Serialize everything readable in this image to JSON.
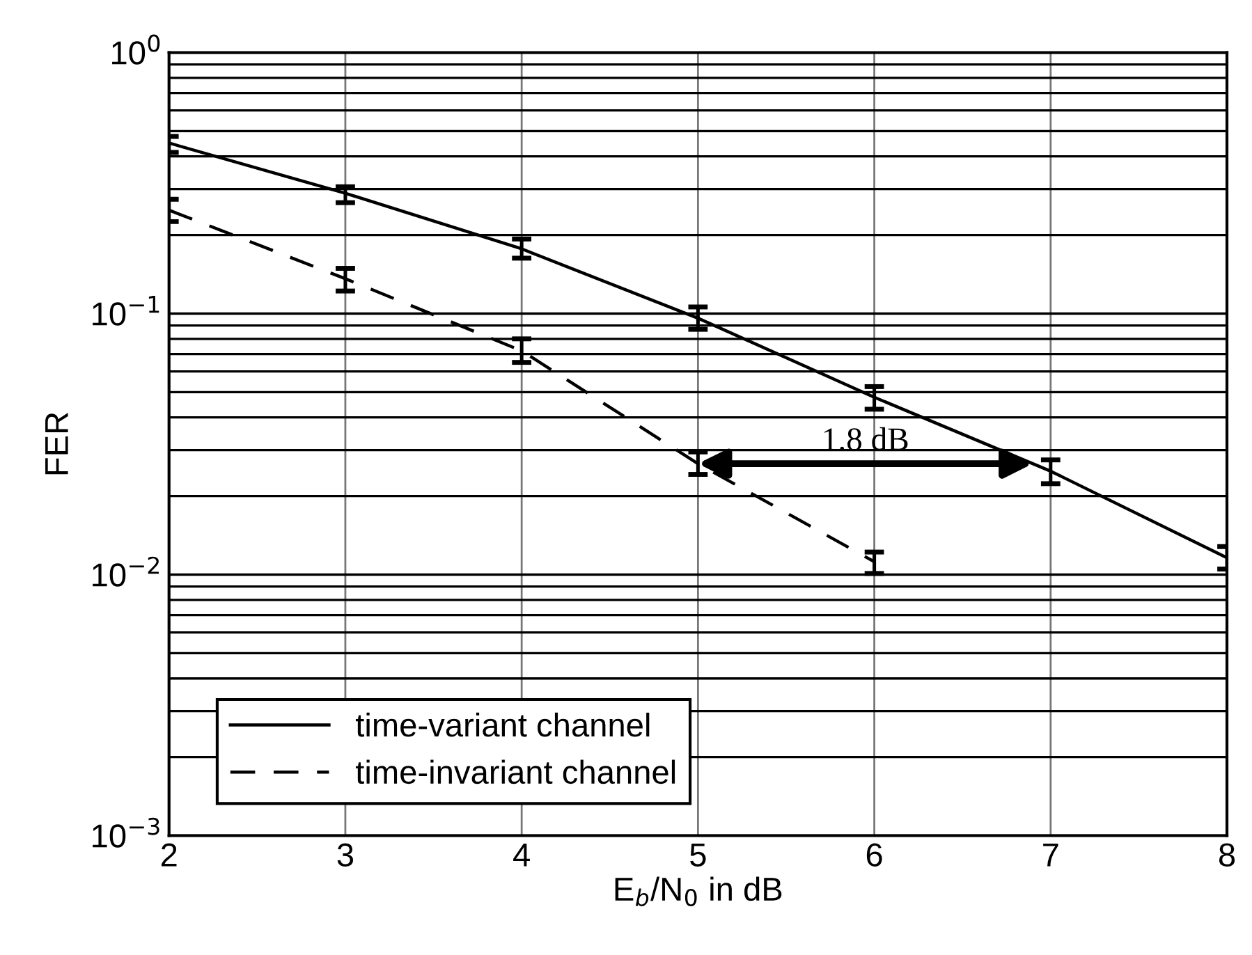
{
  "chart_data": {
    "type": "line",
    "xlabel": "E$_{b}$/N$_{0}$ in dB",
    "ylabel": "FER",
    "x": [
      2,
      3,
      4,
      5,
      6,
      7,
      8
    ],
    "series": [
      {
        "name": "time-variant channel",
        "color": "#000000",
        "line_style": "solid",
        "values": [
          0.45,
          0.289,
          0.177,
          0.096,
          0.0478,
          0.0249,
          0.0116
        ],
        "errors": [
          [
            0.414,
            0.477
          ],
          [
            0.266,
            0.306
          ],
          [
            0.163,
            0.193
          ],
          [
            0.087,
            0.106
          ],
          [
            0.043,
            0.0525
          ],
          [
            0.0223,
            0.0275
          ],
          [
            0.0105,
            0.0128
          ]
        ]
      },
      {
        "name": "time-invariant channel",
        "color": "#000000",
        "line_style": "dashed",
        "x": [
          2,
          3,
          4,
          5,
          6
        ],
        "values": [
          0.249,
          0.136,
          0.072,
          0.0266,
          0.0112
        ],
        "errors": [
          [
            0.225,
            0.274
          ],
          [
            0.122,
            0.149
          ],
          [
            0.065,
            0.08
          ],
          [
            0.0242,
            0.0295
          ],
          [
            0.0101,
            0.0122
          ]
        ]
      }
    ],
    "log": "y",
    "xlim": [
      2,
      8
    ],
    "ylim": [
      0.001,
      1
    ],
    "xticks": [
      2,
      3,
      4,
      5,
      6,
      7,
      8
    ],
    "yticks": [
      {
        "value": 0.001,
        "label": "10$^{−3}$"
      },
      {
        "value": 0.01,
        "label": "10$^{−2}$"
      },
      {
        "value": 0.1,
        "label": "10$^{−1}$"
      },
      {
        "value": 1,
        "label": "10$^{0}$"
      }
    ],
    "grid": true,
    "legend": "bottom left",
    "marker": "none",
    "annotations": [
      "1.8 dB"
    ]
  }
}
